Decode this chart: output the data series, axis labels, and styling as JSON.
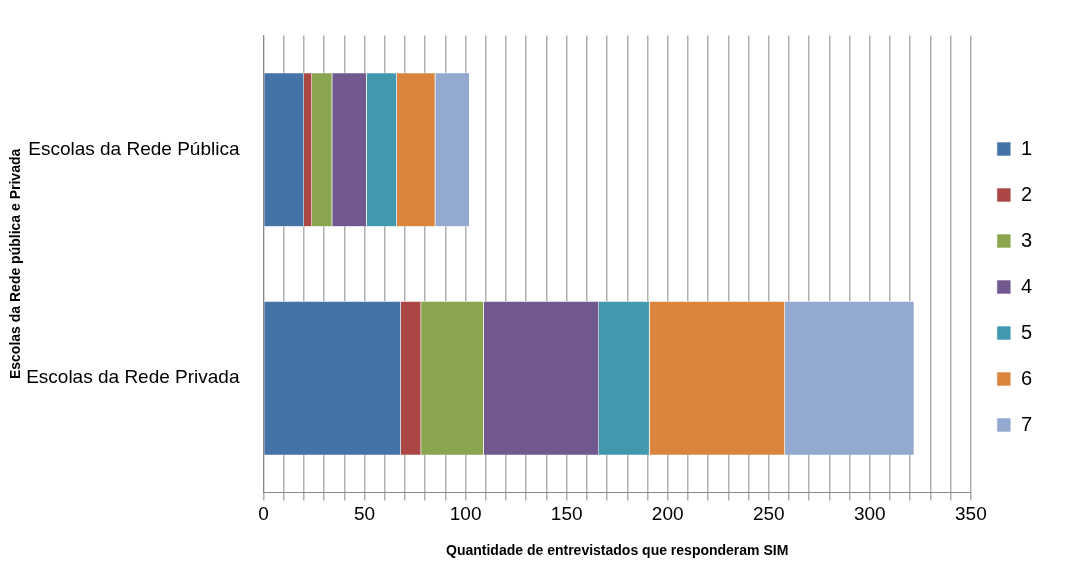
{
  "chart_data": {
    "type": "bar",
    "orientation": "horizontal",
    "stacked": true,
    "xlabel": "Quantidade de entrevistados que responderam SIM",
    "ylabel": "Escolas da Rede pública e Privada",
    "categories": [
      "Escolas da Rede Pública",
      "Escolas da Rede Privada"
    ],
    "series": [
      {
        "name": "1",
        "color": "#4572a7",
        "values": [
          20,
          68
        ]
      },
      {
        "name": "2",
        "color": "#aa4643",
        "values": [
          4,
          10
        ]
      },
      {
        "name": "3",
        "color": "#89a54e",
        "values": [
          10,
          31
        ]
      },
      {
        "name": "4",
        "color": "#71588f",
        "values": [
          17,
          57
        ]
      },
      {
        "name": "5",
        "color": "#4198af",
        "values": [
          15,
          25
        ]
      },
      {
        "name": "6",
        "color": "#db843d",
        "values": [
          19,
          67
        ]
      },
      {
        "name": "7",
        "color": "#93a9cf",
        "values": [
          17,
          64
        ]
      }
    ],
    "xlim": [
      0,
      350
    ],
    "xticks": [
      0,
      {
        "value": 10,
        "label": null
      },
      {
        "value": 20,
        "label": null
      },
      {
        "value": 30,
        "label": null
      },
      {
        "value": 40,
        "label": null
      },
      50,
      {
        "value": 60,
        "label": null
      },
      {
        "value": 70,
        "label": null
      },
      {
        "value": 80,
        "label": null
      },
      {
        "value": 90,
        "label": null
      },
      100,
      {
        "value": 110,
        "label": null
      },
      {
        "value": 120,
        "label": null
      },
      {
        "value": 130,
        "label": null
      },
      {
        "value": 140,
        "label": null
      },
      150,
      {
        "value": 160,
        "label": null
      },
      {
        "value": 170,
        "label": null
      },
      {
        "value": 180,
        "label": null
      },
      {
        "value": 190,
        "label": null
      },
      200,
      {
        "value": 210,
        "label": null
      },
      {
        "value": 220,
        "label": null
      },
      {
        "value": 230,
        "label": null
      },
      {
        "value": 240,
        "label": null
      },
      250,
      {
        "value": 260,
        "label": null
      },
      {
        "value": 270,
        "label": null
      },
      {
        "value": 280,
        "label": null
      },
      {
        "value": 290,
        "label": null
      },
      300,
      {
        "value": 310,
        "label": null
      },
      {
        "value": 320,
        "label": null
      },
      {
        "value": 330,
        "label": null
      },
      {
        "value": 340,
        "label": null
      },
      350
    ],
    "grid": "x",
    "legend": "right"
  }
}
